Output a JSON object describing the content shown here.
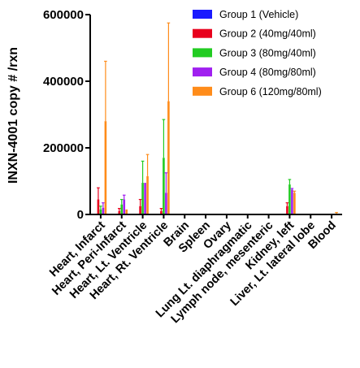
{
  "chart_data": {
    "type": "bar",
    "ylabel": "INXN-4001 copy # /rxn",
    "ylim": [
      0,
      600000
    ],
    "yticks": [
      0,
      200000,
      400000,
      600000
    ],
    "ytick_labels": [
      "0",
      "200000",
      "400000",
      "600000"
    ],
    "categories": [
      "Heart, Infarct",
      "Heart, Peri-Infarct",
      "Heart, Lt. Ventricle",
      "Heart, Rt. Ventricle",
      "Brain",
      "Spleen",
      "Ovary",
      "Lung Lt. diaphragmatic",
      "Lymph node, mesenteric",
      "Kidney, left",
      "Liver, Lt. lateral lobe",
      "Blood"
    ],
    "legend_position": "top-right",
    "series": [
      {
        "name": "Group 1 (Vehicle)",
        "color": "#1a1aff",
        "values": [
          0,
          0,
          0,
          0,
          0,
          0,
          0,
          0,
          0,
          0,
          0,
          0
        ],
        "upper": [
          0,
          0,
          0,
          0,
          0,
          0,
          0,
          0,
          0,
          0,
          0,
          0
        ]
      },
      {
        "name": "Group 2 (40mg/40ml)",
        "color": "#e8001c",
        "values": [
          45000,
          10000,
          25000,
          10000,
          0,
          0,
          0,
          0,
          0,
          25000,
          0,
          0
        ],
        "upper": [
          80000,
          18000,
          45000,
          18000,
          0,
          0,
          0,
          0,
          0,
          35000,
          0,
          0
        ]
      },
      {
        "name": "Group 3 (80mg/40ml)",
        "color": "#22cc22",
        "values": [
          15000,
          30000,
          95000,
          170000,
          0,
          0,
          0,
          0,
          0,
          90000,
          0,
          0
        ],
        "upper": [
          25000,
          45000,
          160000,
          285000,
          0,
          0,
          0,
          0,
          0,
          105000,
          0,
          0
        ]
      },
      {
        "name": "Group 4 (80mg/80ml)",
        "color": "#a020f0",
        "values": [
          20000,
          45000,
          95000,
          65000,
          0,
          0,
          0,
          0,
          0,
          75000,
          0,
          0
        ],
        "upper": [
          35000,
          58000,
          95000,
          125000,
          0,
          0,
          0,
          0,
          0,
          78000,
          0,
          0
        ]
      },
      {
        "name": "Group 6 (120mg/80ml)",
        "color": "#ff8c1a",
        "values": [
          280000,
          15000,
          115000,
          340000,
          0,
          0,
          0,
          0,
          0,
          65000,
          0,
          3000
        ],
        "upper": [
          460000,
          15000,
          180000,
          575000,
          0,
          0,
          0,
          0,
          0,
          70000,
          0,
          6000
        ]
      }
    ]
  }
}
